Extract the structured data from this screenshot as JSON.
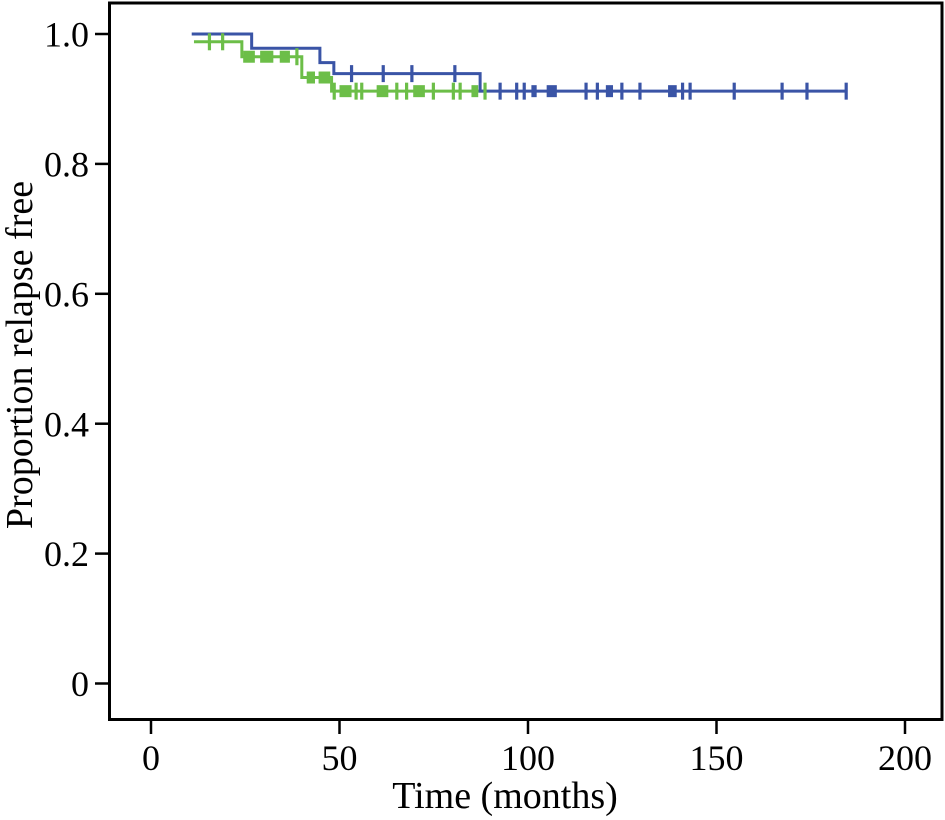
{
  "figure": {
    "background": "#ffffff",
    "axis_color": "#000000"
  },
  "chart_data": {
    "type": "line",
    "subtype": "kaplan_meier_step_curves",
    "title": "",
    "xlabel": "Time (months)",
    "ylabel": "Proportion relapse free",
    "xlim": [
      0,
      200
    ],
    "ylim": [
      0,
      1.0
    ],
    "xticks": [
      0,
      50,
      100,
      150,
      200
    ],
    "xtick_labels": [
      "0",
      "50",
      "100",
      "150",
      "200"
    ],
    "yticks": [
      0,
      0.2,
      0.4,
      0.6,
      0.8,
      1.0
    ],
    "ytick_labels": [
      "0",
      "0.2",
      "0.4",
      "0.6",
      "0.8",
      "1.0"
    ],
    "grid": false,
    "legend": "none",
    "series": [
      {
        "name": "green_group",
        "color": "#6CBE48",
        "start": [
          11.4,
          0.988
        ],
        "drops": [
          [
            24.1,
            0.965
          ],
          [
            40.0,
            0.933
          ],
          [
            47.9,
            0.912
          ]
        ],
        "end_time": 88.9,
        "censors": [
          {
            "t": 15.5,
            "p": 0.988,
            "type": "tick"
          },
          {
            "t": 19.0,
            "p": 0.988,
            "type": "tick"
          },
          {
            "t": 26.0,
            "p": 0.965,
            "type": "square",
            "w": 3.1
          },
          {
            "t": 30.7,
            "p": 0.965,
            "type": "square",
            "w": 3.5
          },
          {
            "t": 35.5,
            "p": 0.965,
            "type": "square",
            "w": 2.7
          },
          {
            "t": 38.7,
            "p": 0.965,
            "type": "tick"
          },
          {
            "t": 42.4,
            "p": 0.933,
            "type": "square",
            "w": 2.2
          },
          {
            "t": 46.0,
            "p": 0.933,
            "type": "square",
            "w": 3.1
          },
          {
            "t": 48.6,
            "p": 0.912,
            "type": "tick"
          },
          {
            "t": 51.6,
            "p": 0.912,
            "type": "square",
            "w": 3.2
          },
          {
            "t": 54.4,
            "p": 0.912,
            "type": "tick"
          },
          {
            "t": 55.9,
            "p": 0.912,
            "type": "tick"
          },
          {
            "t": 61.4,
            "p": 0.912,
            "type": "square",
            "w": 3.1
          },
          {
            "t": 65.2,
            "p": 0.912,
            "type": "tick"
          },
          {
            "t": 67.8,
            "p": 0.912,
            "type": "tick"
          },
          {
            "t": 71.1,
            "p": 0.912,
            "type": "square",
            "w": 3.1
          },
          {
            "t": 74.9,
            "p": 0.912,
            "type": "tick"
          },
          {
            "t": 80.2,
            "p": 0.912,
            "type": "tick"
          },
          {
            "t": 82.0,
            "p": 0.912,
            "type": "tick"
          },
          {
            "t": 85.9,
            "p": 0.912,
            "type": "square",
            "w": 1.8
          },
          {
            "t": 88.6,
            "p": 0.912,
            "type": "tick"
          }
        ]
      },
      {
        "name": "blue_group",
        "color": "#3A54A6",
        "start": [
          10.8,
          1.0
        ],
        "drops": [
          [
            26.7,
            0.978
          ],
          [
            44.8,
            0.956
          ],
          [
            48.5,
            0.939
          ],
          [
            87.3,
            0.912
          ]
        ],
        "end_time": 184.7,
        "censors": [
          {
            "t": 53.2,
            "p": 0.939,
            "type": "tick"
          },
          {
            "t": 61.6,
            "p": 0.939,
            "type": "tick"
          },
          {
            "t": 69.2,
            "p": 0.939,
            "type": "tick"
          },
          {
            "t": 80.6,
            "p": 0.939,
            "type": "tick"
          },
          {
            "t": 92.6,
            "p": 0.912,
            "type": "tick"
          },
          {
            "t": 97.0,
            "p": 0.912,
            "type": "tick"
          },
          {
            "t": 99.0,
            "p": 0.912,
            "type": "tick"
          },
          {
            "t": 101.6,
            "p": 0.912,
            "type": "square",
            "w": 1.4
          },
          {
            "t": 106.3,
            "p": 0.912,
            "type": "square",
            "w": 2.7
          },
          {
            "t": 115.4,
            "p": 0.912,
            "type": "tick"
          },
          {
            "t": 118.4,
            "p": 0.912,
            "type": "tick"
          },
          {
            "t": 121.6,
            "p": 0.912,
            "type": "square",
            "w": 1.9
          },
          {
            "t": 124.9,
            "p": 0.912,
            "type": "tick"
          },
          {
            "t": 129.7,
            "p": 0.912,
            "type": "tick"
          },
          {
            "t": 138.3,
            "p": 0.912,
            "type": "square",
            "w": 2.3
          },
          {
            "t": 141.0,
            "p": 0.912,
            "type": "tick"
          },
          {
            "t": 143.0,
            "p": 0.912,
            "type": "tick"
          },
          {
            "t": 154.7,
            "p": 0.912,
            "type": "tick"
          },
          {
            "t": 167.4,
            "p": 0.912,
            "type": "tick"
          },
          {
            "t": 174.0,
            "p": 0.912,
            "type": "tick"
          },
          {
            "t": 184.4,
            "p": 0.912,
            "type": "tick"
          }
        ]
      }
    ]
  }
}
